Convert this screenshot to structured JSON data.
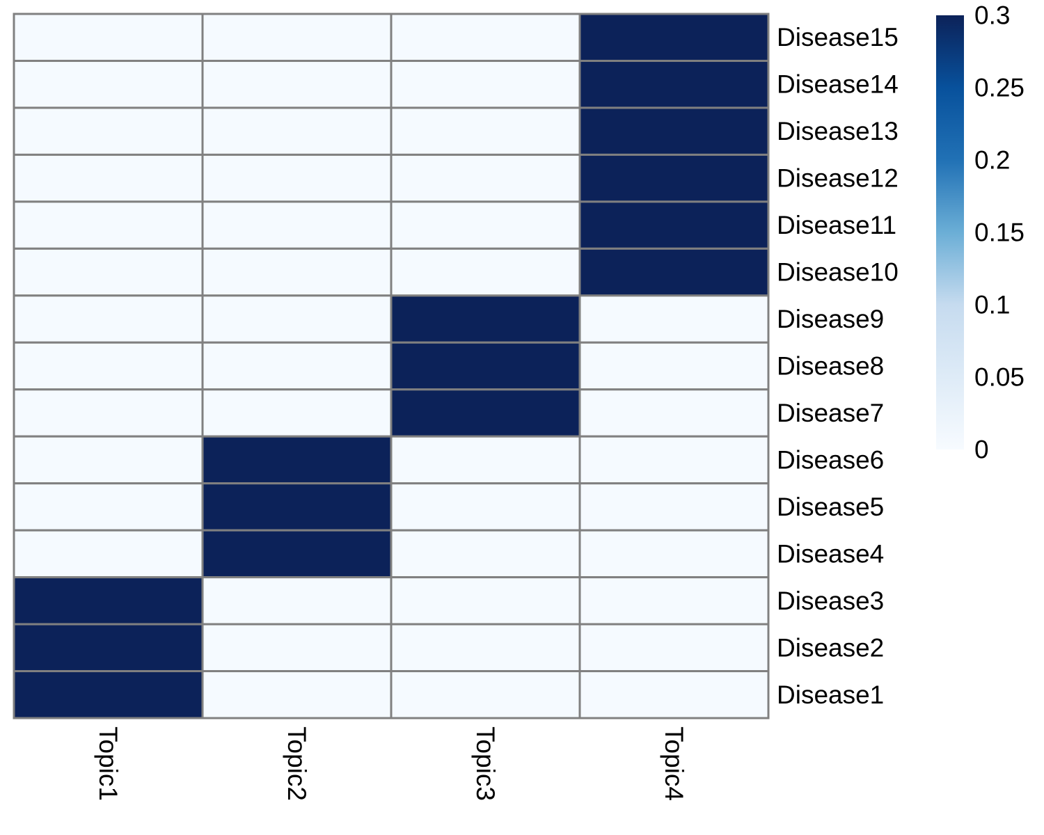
{
  "chart_data": {
    "type": "heatmap",
    "title": "",
    "xlabel": "",
    "ylabel": "",
    "columns": [
      "Topic1",
      "Topic2",
      "Topic3",
      "Topic4"
    ],
    "rows": [
      "Disease15",
      "Disease14",
      "Disease13",
      "Disease12",
      "Disease11",
      "Disease10",
      "Disease9",
      "Disease8",
      "Disease7",
      "Disease6",
      "Disease5",
      "Disease4",
      "Disease3",
      "Disease2",
      "Disease1"
    ],
    "values": [
      [
        0,
        0,
        0,
        0.3
      ],
      [
        0,
        0,
        0,
        0.3
      ],
      [
        0,
        0,
        0,
        0.3
      ],
      [
        0,
        0,
        0,
        0.3
      ],
      [
        0,
        0,
        0,
        0.3
      ],
      [
        0,
        0,
        0,
        0.3
      ],
      [
        0,
        0,
        0.3,
        0
      ],
      [
        0,
        0,
        0.3,
        0
      ],
      [
        0,
        0,
        0.3,
        0
      ],
      [
        0,
        0.3,
        0,
        0
      ],
      [
        0,
        0.3,
        0,
        0
      ],
      [
        0,
        0.3,
        0,
        0
      ],
      [
        0.3,
        0,
        0,
        0
      ],
      [
        0.3,
        0,
        0,
        0
      ],
      [
        0.3,
        0,
        0,
        0
      ]
    ],
    "color_scale": {
      "min": 0,
      "max": 0.3,
      "low_color": "#f5faff",
      "high_color": "#0c2259",
      "ticks": [
        "0",
        "0.05",
        "0.1",
        "0.15",
        "0.2",
        "0.25",
        "0.3"
      ]
    },
    "legend_position": "top-right",
    "grid_color": "#808080"
  }
}
